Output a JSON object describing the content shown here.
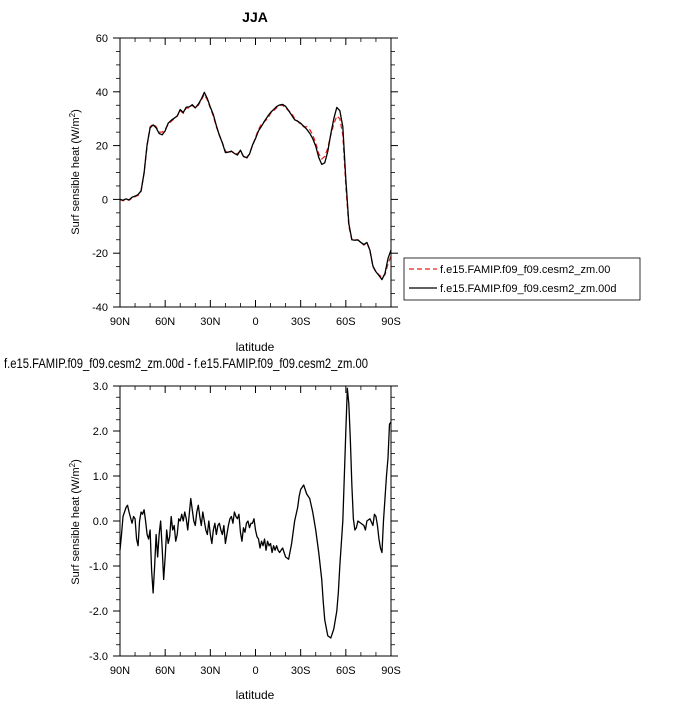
{
  "chart_data": [
    {
      "type": "line",
      "title": "JJA",
      "xlabel": "latitude",
      "ylabel": "Surf sensible heat (W/m",
      "ylabel_sup": "2",
      "ylabel_close": ")",
      "xlim": [
        90,
        -90
      ],
      "ylim": [
        -40,
        60
      ],
      "xticks": [
        90,
        60,
        30,
        0,
        -30,
        -60,
        -90
      ],
      "xticklabels": [
        "90N",
        "60N",
        "30N",
        "0",
        "30S",
        "60S",
        "90S"
      ],
      "yticks": [
        -40,
        -20,
        0,
        20,
        40,
        60
      ],
      "yticklabels": [
        "-40",
        "-20",
        "0",
        "20",
        "40",
        "60"
      ],
      "legend_position": "right",
      "series": [
        {
          "name": "f.e15.FAMIP.f09_f09.cesm2_zm.00",
          "color": "#e8231f",
          "dash": "dashed",
          "x": [
            90,
            88,
            86,
            84,
            82,
            80,
            78,
            76,
            74,
            72,
            70,
            68,
            66,
            64,
            62,
            60,
            58,
            56,
            54,
            52,
            50,
            48,
            46,
            44,
            42,
            40,
            38,
            36,
            34,
            32,
            30,
            28,
            26,
            24,
            22,
            20,
            18,
            16,
            14,
            12,
            10,
            8,
            6,
            4,
            2,
            0,
            -2,
            -4,
            -6,
            -8,
            -10,
            -12,
            -14,
            -16,
            -18,
            -20,
            -22,
            -24,
            -26,
            -28,
            -30,
            -32,
            -34,
            -36,
            -38,
            -40,
            -42,
            -44,
            -46,
            -48,
            -50,
            -52,
            -54,
            -56,
            -58,
            -60,
            -62,
            -64,
            -66,
            -68,
            -70,
            -72,
            -74,
            -76,
            -78,
            -80,
            -82,
            -84,
            -86,
            -88,
            -90
          ],
          "y": [
            0,
            -0.5,
            0,
            -0.3,
            0.5,
            1,
            1.5,
            3,
            10,
            20,
            27,
            28,
            27,
            25,
            25,
            26,
            28,
            29,
            30,
            31,
            33,
            32,
            34,
            34,
            35,
            34,
            35,
            37,
            39,
            37,
            34,
            31,
            27,
            24,
            21,
            18,
            17,
            18,
            17,
            17,
            18,
            16,
            15,
            17,
            20,
            23,
            26,
            28,
            29,
            30,
            32,
            33,
            34,
            35,
            35,
            34,
            33,
            32,
            30,
            29,
            28,
            27,
            27,
            26,
            24,
            21,
            17,
            15,
            16,
            19,
            24,
            28,
            31,
            30,
            24,
            5,
            -10,
            -15,
            -15,
            -15,
            -16,
            -17,
            -16,
            -19,
            -25,
            -27,
            -28,
            -29,
            -28,
            -24,
            -21
          ]
        },
        {
          "name": "f.e15.FAMIP.f09_f09.cesm2_zm.00d",
          "color": "#000000",
          "dash": "solid",
          "x": [
            90,
            88,
            86,
            84,
            82,
            80,
            78,
            76,
            74,
            72,
            70,
            68,
            66,
            64,
            62,
            60,
            58,
            56,
            54,
            52,
            50,
            48,
            46,
            44,
            42,
            40,
            38,
            36,
            34,
            32,
            30,
            28,
            26,
            24,
            22,
            20,
            18,
            16,
            14,
            12,
            10,
            8,
            6,
            4,
            2,
            0,
            -2,
            -4,
            -6,
            -8,
            -10,
            -12,
            -14,
            -16,
            -18,
            -20,
            -22,
            -24,
            -26,
            -28,
            -30,
            -32,
            -34,
            -36,
            -38,
            -40,
            -42,
            -44,
            -46,
            -48,
            -50,
            -52,
            -54,
            -56,
            -58,
            -60,
            -62,
            -64,
            -66,
            -68,
            -70,
            -72,
            -74,
            -76,
            -78,
            -80,
            -82,
            -84,
            -86,
            -88,
            -90
          ],
          "y": [
            0,
            -0.3,
            0.2,
            -0.2,
            0.8,
            1.2,
            1.8,
            3.2,
            9.8,
            20.3,
            26.6,
            27.7,
            26.6,
            24.5,
            24,
            25.5,
            28.3,
            29.4,
            30.2,
            31,
            33.4,
            32.3,
            34.3,
            34.4,
            35.2,
            34,
            35.4,
            37.3,
            39.8,
            37.5,
            34.3,
            31.5,
            27.4,
            23.8,
            21,
            17.4,
            17.6,
            17.9,
            17.1,
            16.5,
            18.3,
            16,
            15.5,
            16.8,
            20.2,
            22.6,
            25.5,
            27.2,
            29.1,
            30.8,
            32.3,
            33.4,
            34.5,
            35.1,
            35.3,
            34.6,
            33,
            31.3,
            29.6,
            29.1,
            28.3,
            27.2,
            26.1,
            24.6,
            22.6,
            19.8,
            15.6,
            13,
            13.6,
            17.8,
            24.3,
            30,
            34.2,
            33,
            27,
            7.5,
            -9,
            -15,
            -15.2,
            -15.1,
            -16,
            -16.8,
            -16,
            -18.9,
            -24.8,
            -26.9,
            -28.3,
            -29.8,
            -27.5,
            -22,
            -18.8
          ]
        }
      ]
    },
    {
      "type": "line",
      "title": "f.e15.FAMIP.f09_f09.cesm2_zm.00d - f.e15.FAMIP.f09_f09.cesm2_zm.00",
      "xlabel": "latitude",
      "ylabel": "Surf sensible heat (W/m",
      "ylabel_sup": "2",
      "ylabel_close": ")",
      "xlim": [
        90,
        -90
      ],
      "ylim": [
        -3,
        3
      ],
      "xticks": [
        90,
        60,
        30,
        0,
        -30,
        -60,
        -90
      ],
      "xticklabels": [
        "90N",
        "60N",
        "30N",
        "0",
        "30S",
        "60S",
        "90S"
      ],
      "yticks": [
        -3,
        -2,
        -1,
        0,
        1,
        2,
        3
      ],
      "yticklabels": [
        "-3.0",
        "-2.0",
        "-1.0",
        "0.0",
        "1.0",
        "2.0",
        "3.0"
      ],
      "series": [
        {
          "color": "#000000",
          "dash": "solid",
          "x": [
            90,
            89,
            88,
            86,
            85,
            84,
            82,
            81,
            80,
            79,
            78,
            77,
            76,
            75,
            74,
            73,
            72,
            71,
            70,
            69,
            68,
            67,
            66,
            65,
            64,
            63,
            62,
            61,
            60,
            59,
            58,
            57,
            56,
            55,
            54,
            53,
            52,
            51,
            50,
            49,
            48,
            47,
            46,
            45,
            44,
            43,
            42,
            41,
            40,
            39,
            38,
            37,
            36,
            35,
            34,
            33,
            32,
            31,
            30,
            29,
            28,
            27,
            26,
            25,
            24,
            23,
            22,
            21,
            20,
            19,
            18,
            17,
            16,
            15,
            14,
            13,
            12,
            11,
            10,
            9,
            8,
            7,
            6,
            5,
            4,
            3,
            2,
            1,
            0,
            -1,
            -2,
            -3,
            -4,
            -5,
            -6,
            -7,
            -8,
            -9,
            -10,
            -11,
            -12,
            -13,
            -14,
            -15,
            -16,
            -18,
            -20,
            -22,
            -24,
            -26,
            -28,
            -29,
            -30,
            -32,
            -34,
            -36,
            -38,
            -40,
            -42,
            -44,
            -45,
            -46,
            -48,
            -50,
            -52,
            -54,
            -55,
            -56,
            -57,
            -58,
            -59,
            -60,
            -61,
            -62,
            -63,
            -64,
            -65,
            -66,
            -67,
            -68,
            -70,
            -72,
            -73,
            -74,
            -76,
            -78,
            -79,
            -80,
            -81,
            -82,
            -83,
            -84,
            -85,
            -86,
            -87,
            -88,
            -89,
            -90
          ],
          "y": [
            -0.65,
            -0.3,
            0.1,
            0.3,
            0.35,
            0.2,
            -0.05,
            0.1,
            0.05,
            -0.4,
            -0.55,
            0.0,
            0.2,
            0.15,
            0.25,
            0.0,
            -0.3,
            -0.4,
            -0.2,
            -1.1,
            -1.6,
            -1.0,
            -0.3,
            -0.8,
            -0.3,
            0.0,
            -0.6,
            -1.3,
            -0.8,
            -0.2,
            -0.5,
            -0.35,
            0.1,
            -0.2,
            -0.1,
            -0.45,
            -0.3,
            0.05,
            0.0,
            0.15,
            0.0,
            0.2,
            0.05,
            -0.2,
            0.15,
            0.5,
            0.25,
            0.0,
            -0.1,
            0.2,
            0.35,
            0.1,
            -0.1,
            0.2,
            0.0,
            -0.2,
            -0.3,
            0.0,
            -0.3,
            -0.5,
            -0.2,
            -0.05,
            -0.3,
            -0.1,
            -0.05,
            -0.2,
            -0.3,
            -0.1,
            -0.5,
            -0.3,
            -0.1,
            0.05,
            0.1,
            -0.05,
            0.2,
            0.1,
            0.05,
            0.15,
            -0.25,
            -0.45,
            -0.15,
            -0.25,
            -0.05,
            0.0,
            -0.15,
            -0.05,
            -0.05,
            0.05,
            -0.2,
            -0.35,
            -0.4,
            -0.6,
            -0.45,
            -0.55,
            -0.4,
            -0.65,
            -0.45,
            -0.55,
            -0.5,
            -0.7,
            -0.55,
            -0.65,
            -0.55,
            -0.65,
            -0.7,
            -0.6,
            -0.8,
            -0.85,
            -0.5,
            0.0,
            0.3,
            0.55,
            0.7,
            0.8,
            0.6,
            0.5,
            0.2,
            -0.2,
            -0.7,
            -1.3,
            -1.8,
            -2.2,
            -2.55,
            -2.6,
            -2.4,
            -2.0,
            -1.6,
            -1.0,
            -0.5,
            0.0,
            1.0,
            2.0,
            2.95,
            2.6,
            1.8,
            0.8,
            0.05,
            -0.2,
            -0.15,
            0.0,
            -0.05,
            -0.1,
            -0.2,
            0.0,
            0.05,
            -0.1,
            0.15,
            0.1,
            -0.1,
            -0.4,
            -0.6,
            -0.7,
            0.0,
            0.5,
            1.0,
            1.4,
            2.15,
            2.2
          ]
        }
      ]
    }
  ]
}
